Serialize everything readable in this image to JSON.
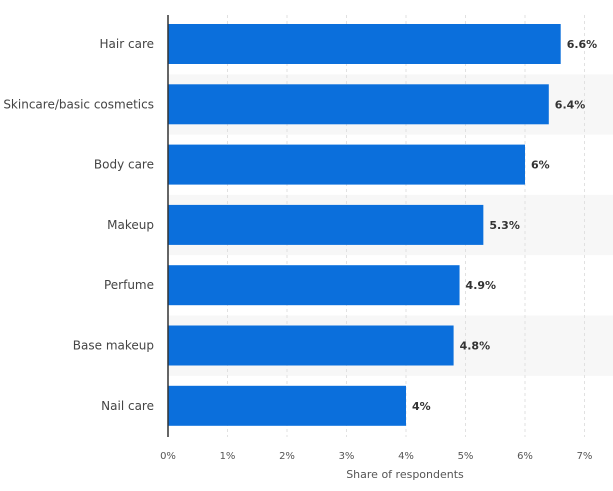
{
  "chart_data": {
    "type": "bar",
    "orientation": "horizontal",
    "categories": [
      "Hair care",
      "Skincare/basic cosmetics",
      "Body care",
      "Makeup",
      "Perfume",
      "Base makeup",
      "Nail care"
    ],
    "values": [
      6.6,
      6.4,
      6.0,
      5.3,
      4.9,
      4.8,
      4.0
    ],
    "value_labels": [
      "6.6%",
      "6.4%",
      "6%",
      "5.3%",
      "4.9%",
      "4.8%",
      "4%"
    ],
    "xlabel": "Share of respondents",
    "ylabel": "",
    "xlim": [
      0,
      7
    ],
    "x_ticks": [
      0,
      1,
      2,
      3,
      4,
      5,
      6,
      7
    ],
    "x_tick_labels": [
      "0%",
      "1%",
      "2%",
      "3%",
      "4%",
      "5%",
      "6%",
      "7%"
    ],
    "grid": true,
    "bar_color": "#0b6fdc",
    "band_color": "#f7f7f7",
    "grid_color": "#e1e1e1"
  }
}
